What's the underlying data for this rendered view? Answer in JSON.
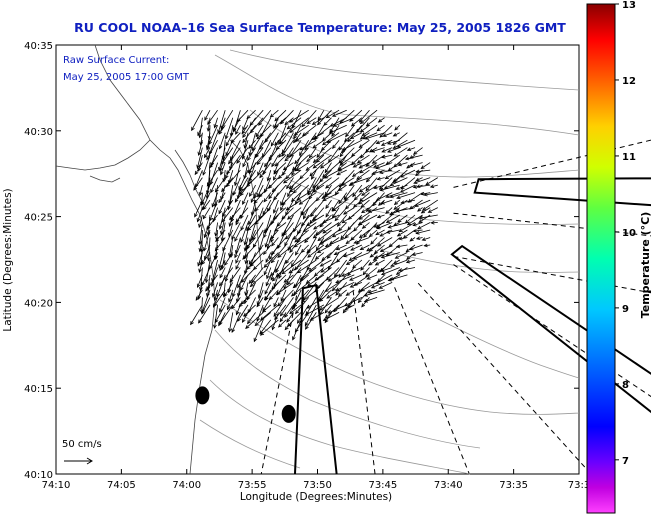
{
  "chart_data": {
    "type": "map-vector-field",
    "title": "RU COOL  NOAA–16  Sea Surface Temperature:  May 25, 2005 1826 GMT",
    "annotation_line1": "Raw Surface Current:",
    "annotation_line2": "May 25, 2005 17:00 GMT",
    "xlabel": "Longitude (Degrees:Minutes)",
    "ylabel": "Latitude (Degrees:Minutes)",
    "x_ticks": [
      "74:10",
      "74:05",
      "74:00",
      "73:55",
      "73:50",
      "73:45",
      "73:40",
      "73:35",
      "73:3"
    ],
    "y_ticks": [
      "40:10",
      "40:15",
      "40:20",
      "40:25",
      "40:30",
      "40:35"
    ],
    "xlim_minutes_west": [
      70,
      30
    ],
    "ylim_minutes_north": [
      10,
      35
    ],
    "scale_label": "50 cm/s",
    "colorbar": {
      "label": "Temperature (°C)",
      "range": [
        6.3,
        13
      ],
      "ticks": [
        "13",
        "12",
        "11",
        "10",
        "9",
        "8",
        "7"
      ],
      "tick_values": [
        13,
        12,
        11,
        10,
        9,
        8,
        7
      ]
    },
    "shipping_channels": [
      {
        "name": "channel-a",
        "points": [
          [
            -73.375,
            40.454
          ],
          [
            -73.628,
            40.453
          ],
          [
            -73.633,
            40.44
          ],
          [
            -73.375,
            40.426
          ]
        ]
      },
      {
        "name": "channel-b",
        "points": [
          [
            -73.375,
            40.247
          ],
          [
            -73.649,
            40.388
          ],
          [
            -73.662,
            40.38
          ],
          [
            -73.375,
            40.207
          ]
        ]
      },
      {
        "name": "channel-c",
        "points": [
          [
            -73.862,
            40.167
          ],
          [
            -73.852,
            40.347
          ],
          [
            -73.835,
            40.35
          ],
          [
            -73.809,
            40.167
          ]
        ]
      }
    ],
    "dashed_lines": [
      {
        "points": [
          [
            -73.66,
            40.445
          ],
          [
            -73.375,
            40.497
          ]
        ]
      },
      {
        "points": [
          [
            -73.66,
            40.42
          ],
          [
            -73.375,
            40.395
          ]
        ]
      },
      {
        "points": [
          [
            -73.66,
            40.378
          ],
          [
            -73.375,
            40.338
          ]
        ]
      },
      {
        "points": [
          [
            -73.66,
            40.37
          ],
          [
            -73.375,
            40.225
          ]
        ]
      },
      {
        "points": [
          [
            -73.705,
            40.352
          ],
          [
            -73.485,
            40.167
          ]
        ]
      },
      {
        "points": [
          [
            -73.735,
            40.348
          ],
          [
            -73.64,
            40.167
          ]
        ]
      },
      {
        "points": [
          [
            -73.788,
            40.345
          ],
          [
            -73.76,
            40.167
          ]
        ]
      },
      {
        "points": [
          [
            -73.86,
            40.34
          ],
          [
            -73.905,
            40.167
          ]
        ]
      }
    ],
    "station_markers": [
      {
        "lon": -73.98,
        "lat": 40.243
      },
      {
        "lon": -73.87,
        "lat": 40.225
      }
    ],
    "current_field": {
      "description": "Surface current vectors (raw HF radar), generally southwestward flow in the Hudson plume region",
      "lon_range": [
        -73.98,
        -73.68
      ],
      "lat_range": [
        40.28,
        40.52
      ]
    }
  }
}
